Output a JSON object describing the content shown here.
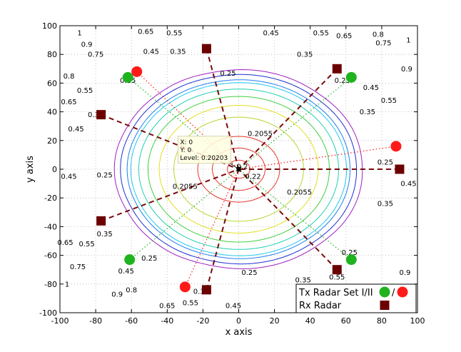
{
  "chart_data": {
    "type": "contour",
    "title": "",
    "xlabel": "x axis",
    "ylabel": "y axis",
    "xlim": [
      -100,
      100
    ],
    "ylim": [
      -100,
      100
    ],
    "xticks": [
      "-100",
      "-80",
      "-60",
      "-40",
      "-20",
      "0",
      "20",
      "40",
      "60",
      "80",
      "100"
    ],
    "yticks": [
      "100",
      "80",
      "60",
      "40",
      "20",
      "0",
      "-20",
      "-40",
      "-60",
      "-80",
      "-100"
    ],
    "grid": true,
    "legend_position": "bottom-right",
    "legend": [
      {
        "label": "Tx Radar Set I/II",
        "suffix": "/",
        "markers": [
          "green-circle",
          "red-circle"
        ]
      },
      {
        "label": "Rx Radar",
        "markers": [
          "darkred-square"
        ]
      }
    ],
    "colors": {
      "tx_set_1": "#1fb31f",
      "tx_set_2": "#ff1a1a",
      "rx": "#6b0000",
      "rx_link": "#7a0a0a",
      "grid": "#b0b0b0"
    },
    "contour_levels": [
      {
        "level": 0.2055,
        "color": "#e8342a",
        "label": "0.2055"
      },
      {
        "level": 0.22,
        "color": "#e8342a",
        "label": "0.22"
      },
      {
        "level": 0.25,
        "color": "#e8342a",
        "label": "0.25"
      },
      {
        "level": 0.35,
        "color": "#b8d630",
        "label": "0.35"
      },
      {
        "level": 0.45,
        "color": "#e0e020",
        "label": "0.45"
      },
      {
        "level": 0.55,
        "color": "#40d040",
        "label": "0.55"
      },
      {
        "level": 0.65,
        "color": "#20d0b0",
        "label": "0.65"
      },
      {
        "level": 0.75,
        "color": "#20c8f0",
        "label": "0.75"
      },
      {
        "level": 0.8,
        "color": "#2080f0",
        "label": "0.8"
      },
      {
        "level": 0.9,
        "color": "#2030d0",
        "label": "0.9"
      },
      {
        "level": 1,
        "color": "#a020c0",
        "label": "1"
      }
    ],
    "contour_labels": [
      {
        "text": "1",
        "x": -89,
        "y": 95
      },
      {
        "text": "0.9",
        "x": -85,
        "y": 87
      },
      {
        "text": "0.75",
        "x": -80,
        "y": 80
      },
      {
        "text": "0.8",
        "x": -95,
        "y": 65
      },
      {
        "text": "0.65",
        "x": -52,
        "y": 96
      },
      {
        "text": "0.55",
        "x": -36,
        "y": 95
      },
      {
        "text": "0.45",
        "x": -49,
        "y": 82
      },
      {
        "text": "0.35",
        "x": -34,
        "y": 82
      },
      {
        "text": "0.25",
        "x": -62,
        "y": 62
      },
      {
        "text": "0.55",
        "x": -86,
        "y": 55
      },
      {
        "text": "0.65",
        "x": -95,
        "y": 47
      },
      {
        "text": "0.45",
        "x": -91,
        "y": 28
      },
      {
        "text": "0.35",
        "x": -80,
        "y": 38
      },
      {
        "text": "0.45",
        "x": 18,
        "y": 95
      },
      {
        "text": "0.55",
        "x": 46,
        "y": 95
      },
      {
        "text": "0.65",
        "x": 59,
        "y": 93
      },
      {
        "text": "0.8",
        "x": 78,
        "y": 94
      },
      {
        "text": "0.75",
        "x": 81,
        "y": 88
      },
      {
        "text": "1",
        "x": 95,
        "y": 90
      },
      {
        "text": "0.9",
        "x": 94,
        "y": 70
      },
      {
        "text": "0.35",
        "x": 37,
        "y": 80
      },
      {
        "text": "0.25",
        "x": -6,
        "y": 67
      },
      {
        "text": "0.25",
        "x": 58,
        "y": 62
      },
      {
        "text": "0.45",
        "x": 74,
        "y": 57
      },
      {
        "text": "0.55",
        "x": 84,
        "y": 48
      },
      {
        "text": "0.35",
        "x": 72,
        "y": 40
      },
      {
        "text": "0.25",
        "x": 82,
        "y": 5
      },
      {
        "text": "0.45",
        "x": 95,
        "y": -10
      },
      {
        "text": "0.35",
        "x": 82,
        "y": -24
      },
      {
        "text": "0.2055",
        "x": 12,
        "y": 25
      },
      {
        "text": "0.2055",
        "x": -30,
        "y": -12
      },
      {
        "text": "0.2055",
        "x": 34,
        "y": -16
      },
      {
        "text": "0.2",
        "x": 2,
        "y": 2
      },
      {
        "text": "0.22",
        "x": 8,
        "y": -5
      },
      {
        "text": "0.25",
        "x": -75,
        "y": -4
      },
      {
        "text": "0.45",
        "x": -95,
        "y": -5
      },
      {
        "text": "0.35",
        "x": -75,
        "y": -45
      },
      {
        "text": "0.55",
        "x": -85,
        "y": -52
      },
      {
        "text": "0.65",
        "x": -97,
        "y": -51
      },
      {
        "text": "0.45",
        "x": -63,
        "y": -71
      },
      {
        "text": "0.75",
        "x": -90,
        "y": -68
      },
      {
        "text": "0.25",
        "x": -50,
        "y": -62
      },
      {
        "text": "1",
        "x": -96,
        "y": -80
      },
      {
        "text": "0.9",
        "x": -68,
        "y": -87
      },
      {
        "text": "0.8",
        "x": -60,
        "y": -84
      },
      {
        "text": "0.65",
        "x": -40,
        "y": -95
      },
      {
        "text": "0.35",
        "x": -21,
        "y": -85
      },
      {
        "text": "0.55",
        "x": -27,
        "y": -93
      },
      {
        "text": "0.45",
        "x": -3,
        "y": -95
      },
      {
        "text": "0.25",
        "x": 6,
        "y": -72
      },
      {
        "text": "0.35",
        "x": 36,
        "y": -77
      },
      {
        "text": "0.25",
        "x": 62,
        "y": -58
      },
      {
        "text": "0.9",
        "x": 93,
        "y": -72
      },
      {
        "text": "0.55",
        "x": 55,
        "y": -75
      }
    ],
    "series": [
      {
        "name": "Tx Radar Set I",
        "marker": "circle",
        "color": "#1fb31f",
        "points": [
          [
            -62,
            64
          ],
          [
            63,
            64
          ],
          [
            -61,
            -63
          ],
          [
            63,
            -63
          ]
        ]
      },
      {
        "name": "Tx Radar Set II",
        "marker": "circle",
        "color": "#ff1a1a",
        "points": [
          [
            -57,
            68
          ],
          [
            88,
            16
          ],
          [
            -30,
            -82
          ]
        ]
      },
      {
        "name": "Rx Radar",
        "marker": "square",
        "color": "#6b0000",
        "points": [
          [
            -18,
            84
          ],
          [
            -77,
            38
          ],
          [
            -77,
            -36
          ],
          [
            -18,
            -84
          ],
          [
            55,
            70
          ],
          [
            90,
            0
          ],
          [
            55,
            -70
          ]
        ]
      }
    ],
    "center": {
      "x": 0,
      "y": 0
    },
    "datatip": {
      "lines": [
        "X: 0",
        "Y: 0",
        "Level: 0.20203"
      ],
      "x": 0,
      "y": 0
    }
  }
}
